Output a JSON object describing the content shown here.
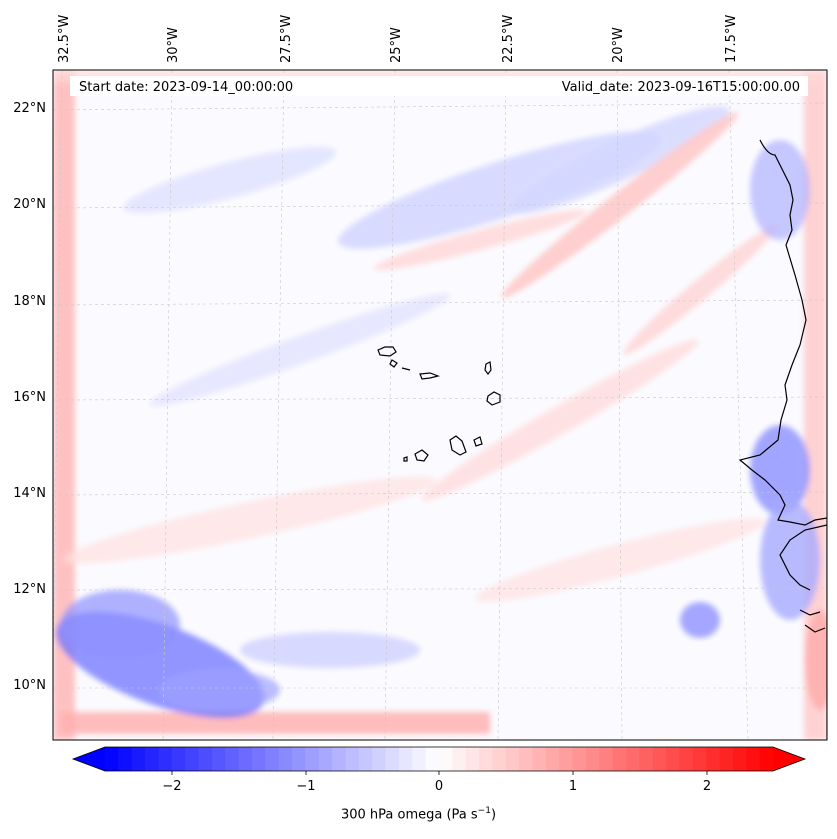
{
  "header": {
    "start_date": "Start date: 2023-09-14_00:00:00",
    "valid_date": "Valid_date: 2023-09-16T15:00:00.00"
  },
  "map": {
    "lon_ticks": [
      "32.5°W",
      "30°W",
      "27.5°W",
      "25°W",
      "22.5°W",
      "20°W",
      "17.5°W"
    ],
    "lat_ticks": [
      "22°N",
      "20°N",
      "18°N",
      "16°N",
      "14°N",
      "12°N",
      "10°N"
    ],
    "gridlines": true,
    "field": "300 hPa omega",
    "coastline_color": "#000000"
  },
  "colorbar": {
    "cmap": "bwr",
    "min_color": "#0000ff",
    "mid_color": "#ffffff",
    "max_color": "#ff0000",
    "range": [
      -2.5,
      2.5
    ],
    "ticks": [
      "−2",
      "−1",
      "0",
      "1",
      "2"
    ],
    "label_prefix": "300 hPa omega (Pa s",
    "label_exp": "−1",
    "label_suffix": ")"
  }
}
